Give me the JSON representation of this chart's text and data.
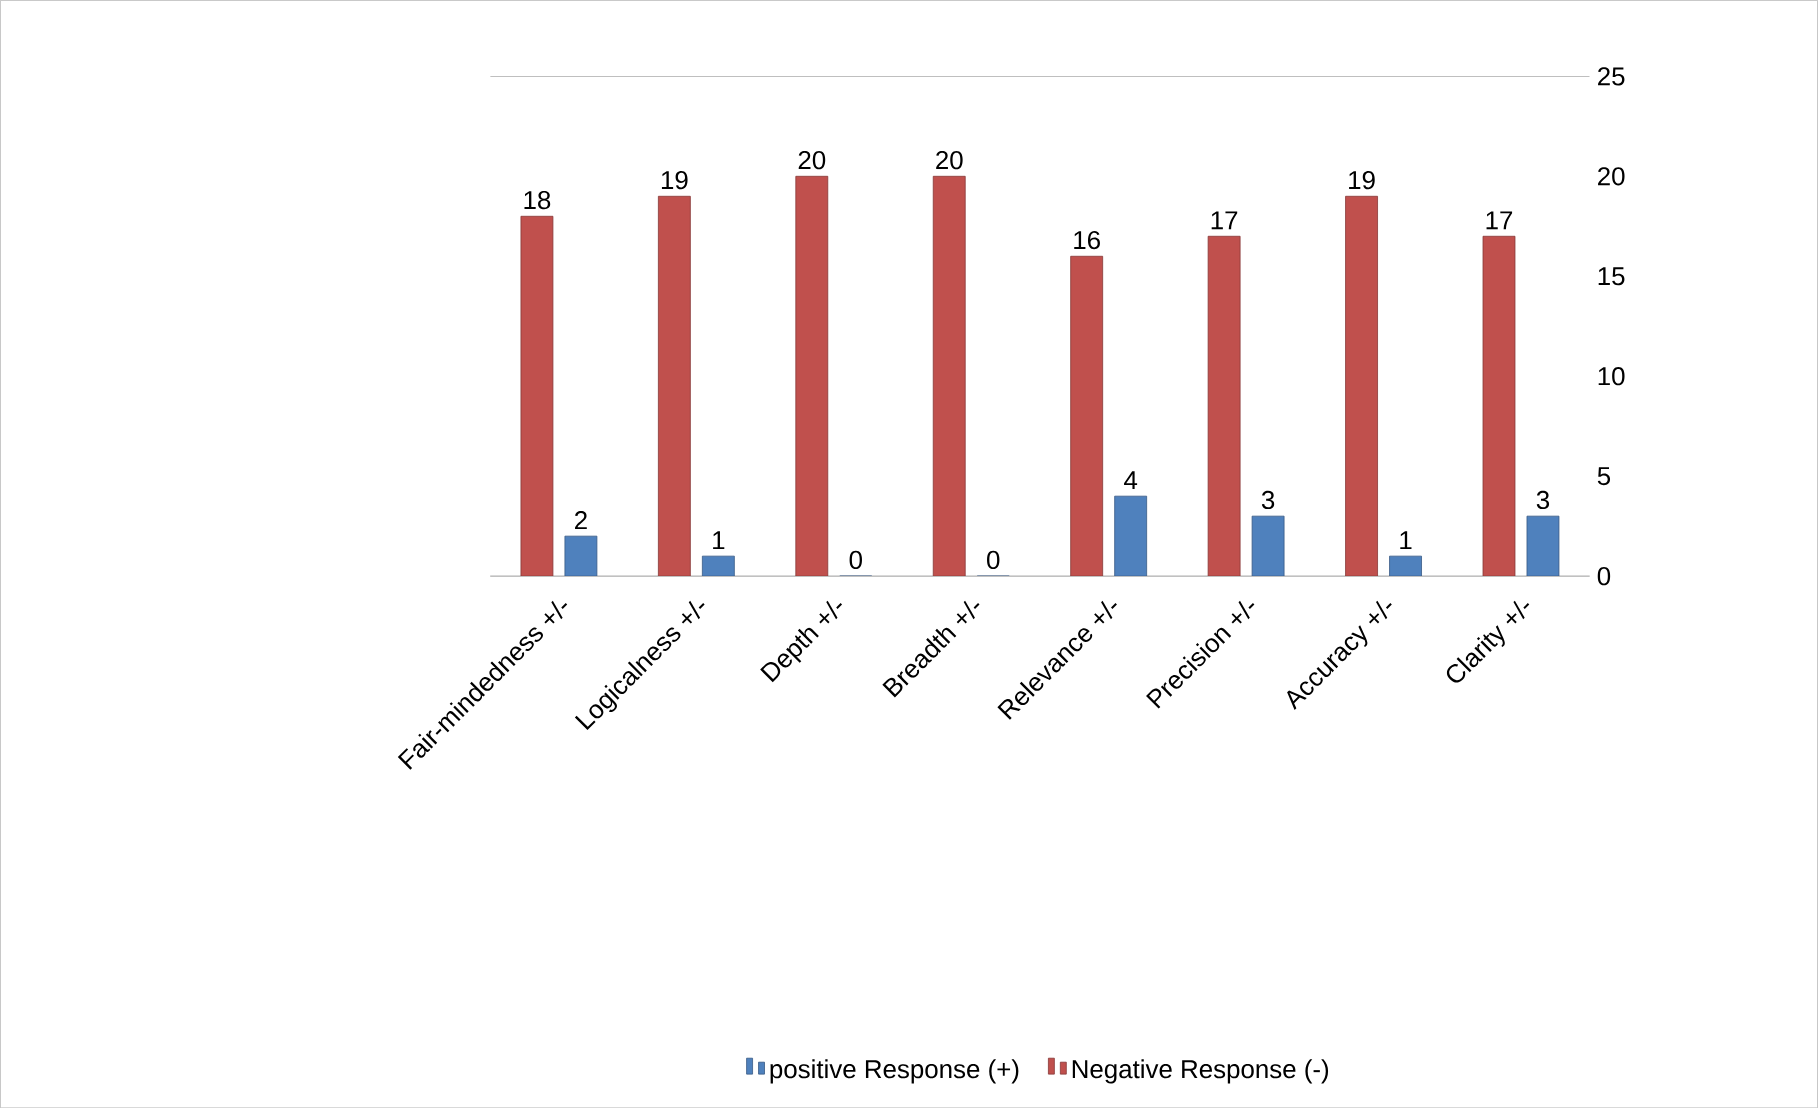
{
  "chart_data": {
    "type": "bar",
    "categories": [
      "Fair-mindedness +/-",
      "Logicalness  +/-",
      "Depth +/-",
      "Breadth +/-",
      "Relevance +/-",
      "Precision +/-",
      "Accuracy +/-",
      "Clarity +/-"
    ],
    "series": [
      {
        "name": "positive Response (+)",
        "color": "#4f81bd",
        "values": [
          2,
          1,
          0,
          0,
          4,
          3,
          1,
          3
        ]
      },
      {
        "name": "Negative Response (-)",
        "color": "#c0504d",
        "values": [
          18,
          19,
          20,
          20,
          16,
          17,
          19,
          17
        ]
      }
    ],
    "ylim": [
      0,
      25
    ],
    "yticks": [
      0,
      5,
      10,
      15,
      20,
      25
    ],
    "grid": false,
    "legend": "bottom",
    "data_labels": true
  }
}
